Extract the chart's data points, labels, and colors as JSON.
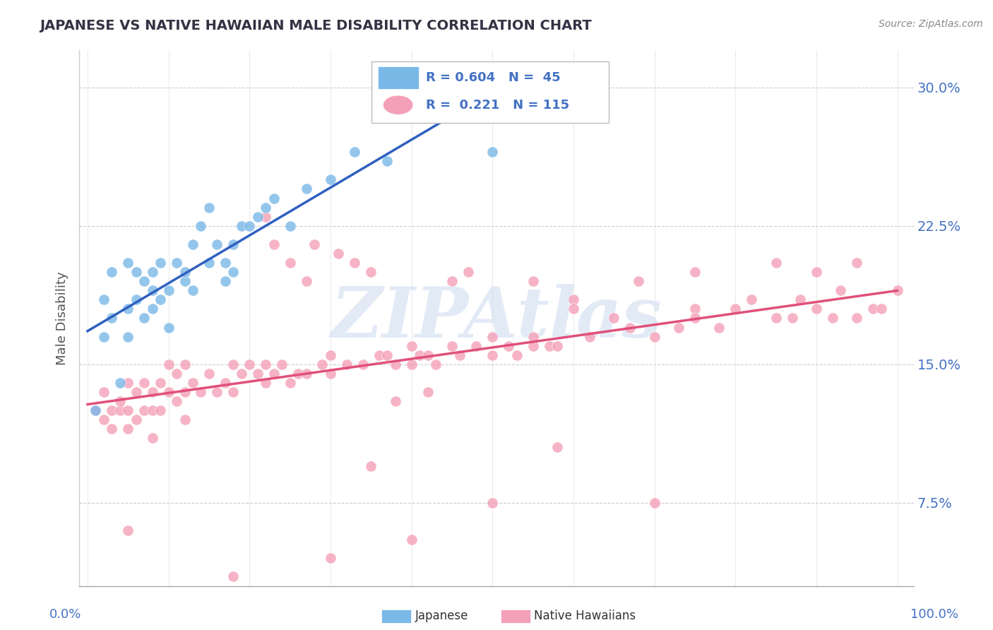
{
  "title": "JAPANESE VS NATIVE HAWAIIAN MALE DISABILITY CORRELATION CHART",
  "source": "Source: ZipAtlas.com",
  "ylabel": "Male Disability",
  "xlim": [
    0,
    100
  ],
  "ylim": [
    3,
    32
  ],
  "yticks": [
    7.5,
    15.0,
    22.5,
    30.0
  ],
  "ytick_labels": [
    "7.5%",
    "15.0%",
    "22.5%",
    "30.0%"
  ],
  "color_japanese": "#7ab8e8",
  "color_hawaiian": "#f4a0b8",
  "color_blue_text": "#4472c4",
  "color_trendline_japanese": "#3060c0",
  "color_trendline_hawaiian": "#e0507a",
  "background_color": "#ffffff",
  "watermark_text": "ZIPAtlas",
  "watermark_color": "#d0ddf0",
  "grid_color": "#cccccc",
  "title_color": "#333344",
  "source_color": "#888888",
  "legend_r1": "R = 0.604",
  "legend_n1": "N =  45",
  "legend_r2": "R =  0.221",
  "legend_n2": "N = 115",
  "jp_x": [
    1,
    2,
    2,
    3,
    3,
    4,
    5,
    5,
    5,
    6,
    6,
    7,
    7,
    8,
    8,
    8,
    9,
    9,
    10,
    10,
    11,
    12,
    12,
    13,
    13,
    14,
    15,
    15,
    16,
    17,
    17,
    18,
    18,
    19,
    20,
    21,
    22,
    23,
    25,
    27,
    30,
    33,
    37,
    42,
    50
  ],
  "jp_y": [
    12.5,
    18.5,
    16.5,
    20.0,
    17.5,
    14.0,
    18.0,
    20.5,
    16.5,
    20.0,
    18.5,
    19.5,
    17.5,
    20.0,
    19.0,
    18.0,
    18.5,
    20.5,
    19.0,
    17.0,
    20.5,
    19.5,
    20.0,
    21.5,
    19.0,
    22.5,
    20.5,
    23.5,
    21.5,
    20.5,
    19.5,
    21.5,
    20.0,
    22.5,
    22.5,
    23.0,
    23.5,
    24.0,
    22.5,
    24.5,
    25.0,
    26.5,
    26.0,
    28.5,
    26.5
  ],
  "hw_x": [
    1,
    2,
    2,
    3,
    3,
    4,
    4,
    5,
    5,
    5,
    6,
    6,
    7,
    7,
    8,
    8,
    9,
    9,
    10,
    10,
    11,
    11,
    12,
    12,
    13,
    14,
    15,
    16,
    17,
    18,
    18,
    19,
    20,
    21,
    22,
    22,
    23,
    23,
    24,
    25,
    25,
    26,
    27,
    28,
    29,
    30,
    30,
    31,
    32,
    33,
    34,
    35,
    36,
    37,
    38,
    40,
    40,
    41,
    42,
    43,
    45,
    46,
    47,
    48,
    50,
    50,
    52,
    53,
    55,
    55,
    57,
    58,
    60,
    62,
    65,
    67,
    70,
    73,
    75,
    75,
    78,
    80,
    82,
    85,
    87,
    88,
    90,
    92,
    93,
    95,
    97,
    98,
    100,
    50,
    35,
    22,
    27,
    38,
    45,
    55,
    60,
    68,
    75,
    85,
    90,
    95,
    40,
    30,
    18,
    12,
    8,
    5,
    42,
    58,
    70
  ],
  "hw_y": [
    12.5,
    12.0,
    13.5,
    12.5,
    11.5,
    12.5,
    13.0,
    11.5,
    12.5,
    14.0,
    12.0,
    13.5,
    12.5,
    14.0,
    12.5,
    13.5,
    14.0,
    12.5,
    13.5,
    15.0,
    13.0,
    14.5,
    13.5,
    15.0,
    14.0,
    13.5,
    14.5,
    13.5,
    14.0,
    15.0,
    13.5,
    14.5,
    15.0,
    14.5,
    15.0,
    14.0,
    21.5,
    14.5,
    15.0,
    20.5,
    14.0,
    14.5,
    14.5,
    21.5,
    15.0,
    15.5,
    14.5,
    21.0,
    15.0,
    20.5,
    15.0,
    20.0,
    15.5,
    15.5,
    15.0,
    15.0,
    16.0,
    15.5,
    15.5,
    15.0,
    16.0,
    15.5,
    20.0,
    16.0,
    15.5,
    16.5,
    16.0,
    15.5,
    19.5,
    16.0,
    16.0,
    16.0,
    18.5,
    16.5,
    17.5,
    17.0,
    16.5,
    17.0,
    18.0,
    17.5,
    17.0,
    18.0,
    18.5,
    17.5,
    17.5,
    18.5,
    18.0,
    17.5,
    19.0,
    17.5,
    18.0,
    18.0,
    19.0,
    7.5,
    9.5,
    23.0,
    19.5,
    13.0,
    19.5,
    16.5,
    18.0,
    19.5,
    20.0,
    20.5,
    20.0,
    20.5,
    5.5,
    4.5,
    3.5,
    12.0,
    11.0,
    6.0,
    13.5,
    10.5,
    7.5
  ]
}
